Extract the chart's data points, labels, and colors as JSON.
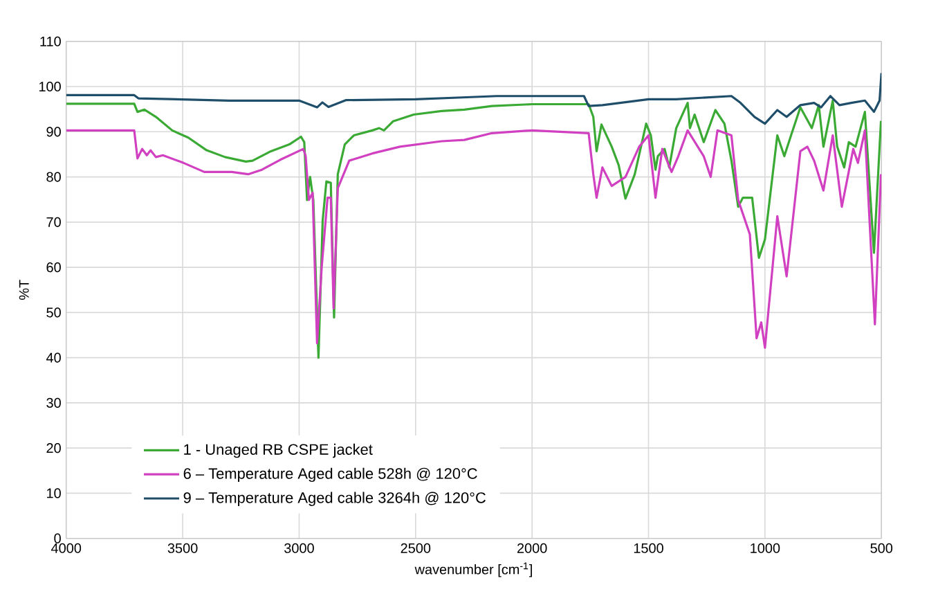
{
  "chart_data": {
    "type": "line",
    "xlabel": "wavenumber [cm$^{-1}$]",
    "ylabel": "%T",
    "xlim": [
      4000,
      500
    ],
    "xticks": [
      4000,
      3500,
      3000,
      2500,
      2000,
      1500,
      1000,
      500
    ],
    "ylim": [
      0,
      110
    ],
    "yticks": [
      0,
      10,
      20,
      30,
      40,
      50,
      60,
      70,
      80,
      90,
      100,
      110
    ],
    "grid": true,
    "legend": "bottom",
    "marker": "none",
    "line_style": "solid",
    "series": [
      {
        "name": "1 - Unaged RB CSPE jacket",
        "color": "#3aaa35",
        "x": [
          4000,
          3708,
          3694,
          3664,
          3615,
          3545,
          3476,
          3397,
          3318,
          3229,
          3200,
          3121,
          3042,
          2992,
          2978,
          2966,
          2953,
          2939,
          2917,
          2899,
          2883,
          2864,
          2850,
          2834,
          2804,
          2765,
          2686,
          2656,
          2636,
          2597,
          2508,
          2389,
          2291,
          2172,
          2000,
          1757,
          1737,
          1723,
          1702,
          1658,
          1628,
          1599,
          1559,
          1510,
          1490,
          1470,
          1460,
          1431,
          1411,
          1381,
          1332,
          1322,
          1302,
          1263,
          1213,
          1174,
          1144,
          1115,
          1095,
          1055,
          1026,
          1000,
          947,
          917,
          888,
          848,
          799,
          769,
          749,
          709,
          690,
          660,
          640,
          611,
          571,
          532,
          502
        ],
        "values": [
          96.2,
          96.2,
          94.4,
          94.9,
          93.3,
          90.3,
          88.7,
          85.9,
          84.4,
          83.4,
          83.6,
          85.7,
          87.2,
          88.9,
          87.7,
          74.9,
          80,
          74.9,
          40,
          70.3,
          79,
          78.7,
          48.9,
          80.6,
          87.2,
          89.2,
          90.3,
          90.8,
          90.3,
          92.3,
          93.8,
          94.6,
          94.9,
          95.7,
          96.1,
          96.1,
          93.3,
          85.7,
          91.6,
          86.7,
          82.6,
          75.2,
          80.6,
          91.8,
          89.2,
          81.6,
          84.6,
          86.2,
          82.1,
          90.8,
          96.4,
          90.8,
          93.8,
          87.7,
          94.8,
          91.8,
          83.6,
          73.4,
          75.4,
          75.4,
          62.1,
          66.2,
          89.2,
          84.6,
          89.2,
          95.4,
          90.8,
          95.9,
          86.7,
          96.9,
          86.7,
          82.1,
          87.7,
          86.7,
          94.4,
          63.2,
          92.4
        ]
      },
      {
        "name": "6 – Temperature Aged cable 528h @ 120°C",
        "color": "#d040c0",
        "x": [
          4000,
          3708,
          3694,
          3674,
          3654,
          3638,
          3615,
          3585,
          3496,
          3407,
          3289,
          3219,
          3160,
          3081,
          2982,
          2972,
          2958,
          2942,
          2923,
          2903,
          2878,
          2864,
          2852,
          2834,
          2785,
          2686,
          2567,
          2389,
          2291,
          2172,
          2000,
          1757,
          1737,
          1723,
          1698,
          1658,
          1599,
          1540,
          1500,
          1470,
          1441,
          1401,
          1372,
          1332,
          1263,
          1233,
          1204,
          1144,
          1115,
          1065,
          1036,
          1016,
          1000,
          947,
          907,
          848,
          818,
          789,
          749,
          709,
          670,
          621,
          601,
          571,
          528,
          502
        ],
        "values": [
          90.3,
          90.3,
          84.1,
          86.2,
          84.8,
          85.9,
          84.4,
          84.8,
          83.1,
          81.1,
          81.1,
          80.6,
          81.6,
          83.8,
          86.2,
          84.6,
          74.9,
          76.5,
          43.2,
          60.1,
          75.4,
          75.4,
          50.9,
          77.5,
          83.6,
          85.2,
          86.7,
          87.9,
          88.2,
          89.7,
          90.3,
          89.7,
          80.6,
          75.4,
          82.1,
          78,
          80,
          86.7,
          89.2,
          75.4,
          86.2,
          81.1,
          84.6,
          90.3,
          84.6,
          80,
          90.3,
          89.2,
          74.9,
          67.3,
          44.3,
          47.8,
          42.2,
          71.3,
          58,
          85.7,
          86.7,
          83.6,
          77,
          89.2,
          73.4,
          86.2,
          83.1,
          90.3,
          47.4,
          80.6
        ]
      },
      {
        "name": "9 – Temperature Aged cable 3264h @ 120°C",
        "color": "#1f4e6b",
        "x": [
          4000,
          3708,
          3690,
          3300,
          3000,
          2923,
          2900,
          2874,
          2800,
          2500,
          2300,
          2152,
          1777,
          1757,
          1698,
          1500,
          1381,
          1144,
          1105,
          1045,
          1000,
          947,
          907,
          848,
          789,
          759,
          719,
          680,
          630,
          571,
          532,
          508,
          500
        ],
        "values": [
          98.1,
          98.1,
          97.4,
          96.9,
          96.9,
          95.4,
          96.5,
          95.5,
          97,
          97.2,
          97.6,
          97.9,
          97.9,
          95.7,
          95.9,
          97.2,
          97.2,
          97.9,
          96.4,
          93.3,
          91.8,
          94.8,
          93.3,
          95.9,
          96.4,
          95.4,
          97.9,
          95.9,
          96.4,
          96.9,
          94.4,
          96.9,
          103
        ]
      }
    ]
  }
}
